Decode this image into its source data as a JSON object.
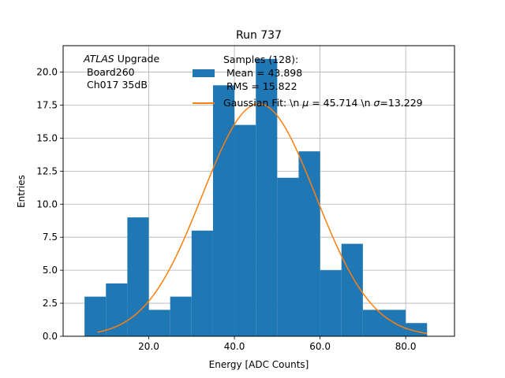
{
  "chart_data": {
    "type": "bar",
    "title": "Run 737",
    "xlabel": "Energy [ADC Counts]",
    "ylabel": "Entries",
    "xlim": [
      0,
      91.4
    ],
    "ylim": [
      0,
      22
    ],
    "grid": true,
    "x_ticks": [
      20,
      40,
      60,
      80
    ],
    "x_tick_labels": [
      "20.0",
      "40.0",
      "60.0",
      "80.0"
    ],
    "y_ticks": [
      0,
      2.5,
      5,
      7.5,
      10,
      12.5,
      15,
      17.5,
      20
    ],
    "y_tick_labels": [
      "0.0",
      "2.5",
      "5.0",
      "7.5",
      "10.0",
      "12.5",
      "15.0",
      "17.5",
      "20.0"
    ],
    "histogram": {
      "bin_edges": [
        5,
        10,
        15,
        20,
        25,
        30,
        35,
        40,
        45,
        50,
        55,
        60,
        65,
        70,
        75,
        80,
        85
      ],
      "counts": [
        3,
        4,
        9,
        2,
        3,
        8,
        19,
        16,
        21,
        12,
        14,
        5,
        7,
        2,
        2,
        1
      ],
      "color": "#1f77b4"
    },
    "gaussian_fit": {
      "mu": 45.714,
      "sigma": 13.229,
      "amplitude": 17.6,
      "x_range": [
        8,
        85
      ],
      "color": "#ff7f0e"
    },
    "annotation": {
      "italic_part": "ATLAS",
      "line1_rest": " Upgrade",
      "line2": "Board260",
      "line3": "Ch017 35dB"
    },
    "legend": {
      "position": "top-center",
      "hist_label_lines": [
        "Samples (128):",
        " Mean = 43.898",
        " RMS = 15.822"
      ],
      "fit_label_prefix": "Gaussian Fit: \\n ",
      "fit_mu_symbol": "μ",
      "fit_mu_text": " = 45.714 \\n ",
      "fit_sigma_symbol": "σ",
      "fit_sigma_text": "=13.229"
    }
  }
}
